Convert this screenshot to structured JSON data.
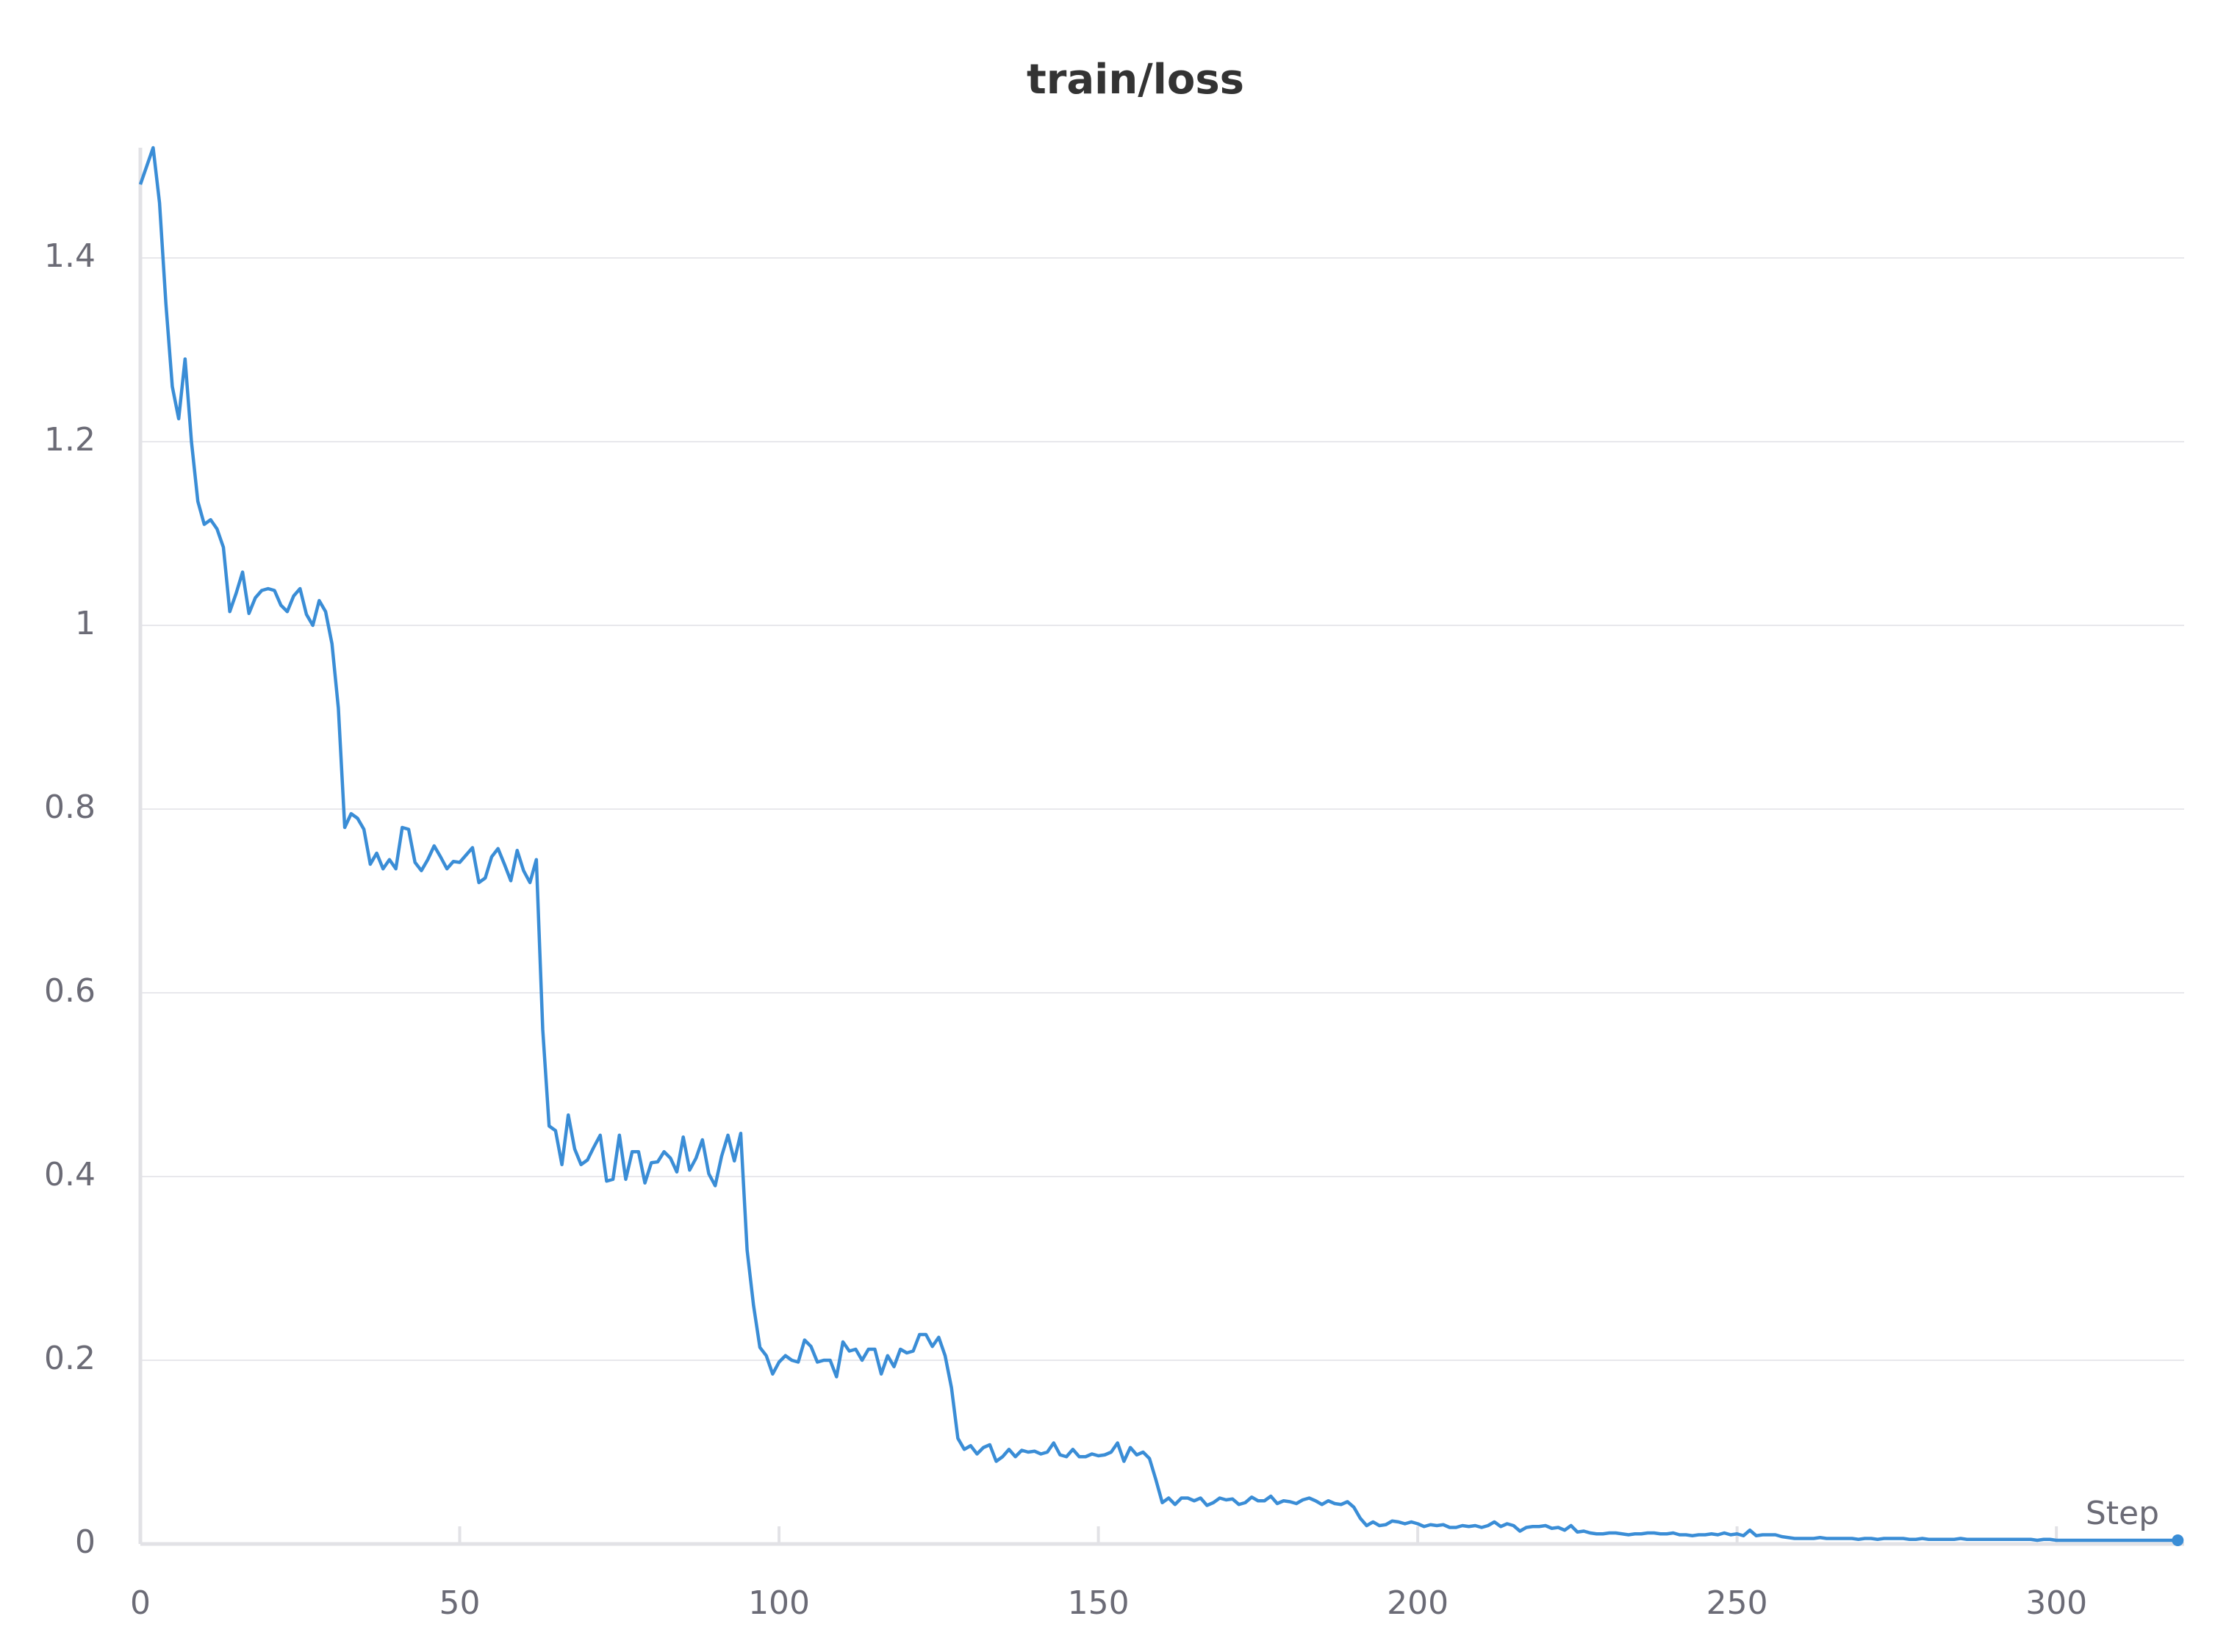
{
  "chart_data": {
    "type": "line",
    "title": "train/loss",
    "x_label": "Step",
    "color": "#3a8dd6",
    "grid": true,
    "xlim": [
      0,
      320
    ],
    "ylim": [
      0,
      1.52
    ],
    "xticks": [
      0,
      50,
      100,
      150,
      200,
      250,
      300
    ],
    "yticks": [
      0,
      0.2,
      0.4,
      0.6,
      0.8,
      1,
      1.2,
      1.4
    ],
    "x": [
      0,
      1,
      2,
      3,
      4,
      5,
      6,
      7,
      8,
      9,
      10,
      11,
      12,
      13,
      14,
      15,
      16,
      17,
      18,
      19,
      20,
      21,
      22,
      23,
      24,
      25,
      26,
      27,
      28,
      29,
      30,
      31,
      32,
      33,
      34,
      35,
      36,
      37,
      38,
      39,
      40,
      41,
      42,
      43,
      44,
      45,
      46,
      47,
      48,
      49,
      50,
      51,
      52,
      53,
      54,
      55,
      56,
      57,
      58,
      59,
      60,
      61,
      62,
      63,
      64,
      65,
      66,
      67,
      68,
      69,
      70,
      71,
      72,
      73,
      74,
      75,
      76,
      77,
      78,
      79,
      80,
      81,
      82,
      83,
      84,
      85,
      86,
      87,
      88,
      89,
      90,
      91,
      92,
      93,
      94,
      95,
      96,
      97,
      98,
      99,
      100,
      101,
      102,
      103,
      104,
      105,
      106,
      107,
      108,
      109,
      110,
      111,
      112,
      113,
      114,
      115,
      116,
      117,
      118,
      119,
      120,
      121,
      122,
      123,
      124,
      125,
      126,
      127,
      128,
      129,
      130,
      131,
      132,
      133,
      134,
      135,
      136,
      137,
      138,
      139,
      140,
      141,
      142,
      143,
      144,
      145,
      146,
      147,
      148,
      149,
      150,
      151,
      152,
      153,
      154,
      155,
      156,
      157,
      158,
      159,
      160,
      161,
      162,
      163,
      164,
      165,
      166,
      167,
      168,
      169,
      170,
      171,
      172,
      173,
      174,
      175,
      176,
      177,
      178,
      179,
      180,
      181,
      182,
      183,
      184,
      185,
      186,
      187,
      188,
      189,
      190,
      191,
      192,
      193,
      194,
      195,
      196,
      197,
      198,
      199,
      200,
      201,
      202,
      203,
      204,
      205,
      206,
      207,
      208,
      209,
      210,
      211,
      212,
      213,
      214,
      215,
      216,
      217,
      218,
      219,
      220,
      221,
      222,
      223,
      224,
      225,
      226,
      227,
      228,
      229,
      230,
      231,
      232,
      233,
      234,
      235,
      236,
      237,
      238,
      239,
      240,
      241,
      242,
      243,
      244,
      245,
      246,
      247,
      248,
      249,
      250,
      251,
      252,
      253,
      254,
      255,
      256,
      257,
      258,
      259,
      260,
      261,
      262,
      263,
      264,
      265,
      266,
      267,
      268,
      269,
      270,
      271,
      272,
      273,
      274,
      275,
      276,
      277,
      278,
      279,
      280,
      281,
      282,
      283,
      284,
      285,
      286,
      287,
      288,
      289,
      290,
      291,
      292,
      293,
      294,
      295,
      296,
      297,
      298,
      299,
      300,
      301,
      302,
      303,
      304,
      305,
      306,
      307,
      308,
      309,
      310,
      311,
      312,
      313,
      314,
      315,
      316,
      317,
      318,
      319
    ],
    "values": [
      1.48,
      1.5,
      1.52,
      1.46,
      1.35,
      1.26,
      1.225,
      1.29,
      1.2,
      1.135,
      1.11,
      1.115,
      1.105,
      1.085,
      1.015,
      1.035,
      1.058,
      1.013,
      1.03,
      1.038,
      1.04,
      1.038,
      1.022,
      1.015,
      1.032,
      1.04,
      1.012,
      1.0,
      1.027,
      1.015,
      0.98,
      0.91,
      0.78,
      0.795,
      0.79,
      0.778,
      0.74,
      0.752,
      0.735,
      0.745,
      0.735,
      0.78,
      0.778,
      0.742,
      0.733,
      0.745,
      0.76,
      0.748,
      0.735,
      0.743,
      0.742,
      0.75,
      0.758,
      0.72,
      0.725,
      0.748,
      0.757,
      0.74,
      0.722,
      0.755,
      0.733,
      0.72,
      0.745,
      0.56,
      0.455,
      0.45,
      0.413,
      0.467,
      0.43,
      0.413,
      0.418,
      0.432,
      0.445,
      0.395,
      0.397,
      0.445,
      0.397,
      0.427,
      0.427,
      0.393,
      0.415,
      0.416,
      0.427,
      0.42,
      0.405,
      0.443,
      0.407,
      0.42,
      0.44,
      0.403,
      0.39,
      0.422,
      0.445,
      0.417,
      0.447,
      0.32,
      0.26,
      0.214,
      0.205,
      0.185,
      0.198,
      0.205,
      0.2,
      0.198,
      0.222,
      0.215,
      0.198,
      0.2,
      0.2,
      0.182,
      0.22,
      0.21,
      0.212,
      0.2,
      0.212,
      0.212,
      0.185,
      0.205,
      0.193,
      0.212,
      0.208,
      0.21,
      0.228,
      0.228,
      0.215,
      0.225,
      0.205,
      0.17,
      0.115,
      0.103,
      0.107,
      0.098,
      0.105,
      0.108,
      0.09,
      0.095,
      0.103,
      0.095,
      0.102,
      0.1,
      0.101,
      0.098,
      0.1,
      0.11,
      0.097,
      0.095,
      0.103,
      0.095,
      0.095,
      0.098,
      0.096,
      0.097,
      0.1,
      0.11,
      0.09,
      0.105,
      0.097,
      0.1,
      0.093,
      0.07,
      0.045,
      0.05,
      0.043,
      0.05,
      0.05,
      0.047,
      0.05,
      0.042,
      0.045,
      0.05,
      0.048,
      0.049,
      0.043,
      0.045,
      0.051,
      0.047,
      0.047,
      0.052,
      0.044,
      0.047,
      0.046,
      0.044,
      0.048,
      0.05,
      0.047,
      0.043,
      0.047,
      0.044,
      0.043,
      0.046,
      0.04,
      0.028,
      0.02,
      0.024,
      0.02,
      0.021,
      0.025,
      0.024,
      0.022,
      0.024,
      0.022,
      0.019,
      0.021,
      0.02,
      0.021,
      0.018,
      0.018,
      0.02,
      0.019,
      0.02,
      0.018,
      0.02,
      0.024,
      0.019,
      0.022,
      0.02,
      0.014,
      0.018,
      0.019,
      0.019,
      0.02,
      0.017,
      0.018,
      0.015,
      0.02,
      0.013,
      0.014,
      0.012,
      0.011,
      0.011,
      0.012,
      0.012,
      0.011,
      0.01,
      0.011,
      0.011,
      0.012,
      0.012,
      0.011,
      0.011,
      0.012,
      0.01,
      0.01,
      0.009,
      0.01,
      0.01,
      0.011,
      0.01,
      0.012,
      0.01,
      0.011,
      0.009,
      0.015,
      0.009,
      0.01,
      0.01,
      0.01,
      0.008,
      0.007,
      0.006,
      0.006,
      0.006,
      0.006,
      0.007,
      0.006,
      0.006,
      0.006,
      0.006,
      0.006,
      0.005,
      0.006,
      0.006,
      0.005,
      0.006,
      0.006,
      0.006,
      0.006,
      0.005,
      0.005,
      0.006,
      0.005,
      0.005,
      0.005,
      0.005,
      0.005,
      0.006,
      0.005,
      0.005,
      0.005,
      0.005,
      0.005,
      0.005,
      0.005,
      0.005,
      0.005,
      0.005,
      0.005,
      0.004,
      0.005,
      0.005,
      0.004,
      0.004,
      0.004,
      0.004,
      0.004,
      0.004,
      0.004,
      0.004,
      0.004,
      0.004,
      0.004,
      0.004,
      0.004,
      0.004,
      0.004,
      0.004,
      0.004,
      0.004,
      0.004,
      0.004
    ]
  }
}
